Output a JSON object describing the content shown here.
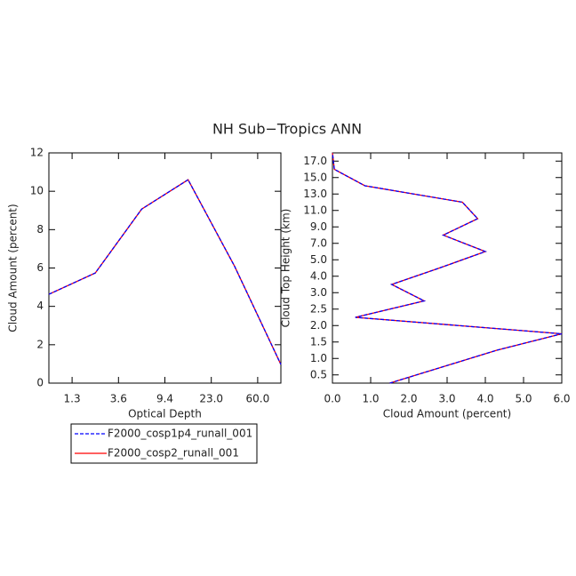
{
  "title": "NH Sub−Tropics ANN",
  "chart_data": [
    {
      "type": "line",
      "x_label": "Optical Depth",
      "y_label": "Cloud Amount (percent)",
      "x": [
        0,
        1,
        2,
        3,
        4,
        5
      ],
      "xlim": [
        0,
        5
      ],
      "xticks": [
        {
          "value": 0.5,
          "label": "1.3"
        },
        {
          "value": 1.5,
          "label": "3.6"
        },
        {
          "value": 2.5,
          "label": "9.4"
        },
        {
          "value": 3.5,
          "label": "23.0"
        },
        {
          "value": 4.5,
          "label": "60.0"
        }
      ],
      "ylim": [
        0,
        12
      ],
      "yticks": [
        0,
        2,
        4,
        6,
        8,
        10,
        12
      ],
      "series": [
        {
          "name": "F2000_cosp2_runall_001",
          "color": "#ff0000",
          "dash": false,
          "values": [
            4.63,
            5.74,
            9.07,
            10.6,
            6.1,
            0.97
          ]
        },
        {
          "name": "F2000_cosp1p4_runall_001",
          "color": "#0000ff",
          "dash": true,
          "values": [
            4.63,
            5.74,
            9.07,
            10.6,
            6.1,
            0.97
          ]
        }
      ]
    },
    {
      "type": "line",
      "orient": "horizontal",
      "x_label": "Cloud Amount (percent)",
      "y_label": "Cloud Top Height (km)",
      "y": [
        0,
        1,
        2,
        3,
        4,
        5,
        6,
        7,
        8,
        9,
        10,
        11,
        12,
        13,
        14
      ],
      "ylim": [
        0,
        14
      ],
      "yticks": [
        {
          "value": 0.5,
          "label": "0.5"
        },
        {
          "value": 1.5,
          "label": "1.0"
        },
        {
          "value": 2.5,
          "label": "1.5"
        },
        {
          "value": 3.5,
          "label": "2.0"
        },
        {
          "value": 4.5,
          "label": "2.5"
        },
        {
          "value": 5.5,
          "label": "3.0"
        },
        {
          "value": 6.5,
          "label": "4.0"
        },
        {
          "value": 7.5,
          "label": "5.0"
        },
        {
          "value": 8.5,
          "label": "7.0"
        },
        {
          "value": 9.5,
          "label": "9.0"
        },
        {
          "value": 10.5,
          "label": "11.0"
        },
        {
          "value": 11.5,
          "label": "13.0"
        },
        {
          "value": 12.5,
          "label": "15.0"
        },
        {
          "value": 13.5,
          "label": "17.0"
        }
      ],
      "xlim": [
        0,
        6
      ],
      "xticks": [
        {
          "value": 0,
          "label": "0.0"
        },
        {
          "value": 1,
          "label": "1.0"
        },
        {
          "value": 2,
          "label": "2.0"
        },
        {
          "value": 3,
          "label": "3.0"
        },
        {
          "value": 4,
          "label": "4.0"
        },
        {
          "value": 5,
          "label": "5.0"
        },
        {
          "value": 6,
          "label": "6.0"
        }
      ],
      "series": [
        {
          "color": "#ff0000",
          "dash": false,
          "values": [
            1.5,
            2.9,
            4.3,
            6.0,
            0.6,
            2.4,
            1.55,
            2.8,
            4.0,
            2.9,
            3.8,
            3.4,
            0.85,
            0.05,
            0.0
          ]
        },
        {
          "color": "#0000ff",
          "dash": true,
          "values": [
            1.5,
            2.9,
            4.3,
            6.0,
            0.6,
            2.4,
            1.55,
            2.8,
            4.0,
            2.9,
            3.8,
            3.4,
            0.85,
            0.05,
            0.0
          ]
        }
      ]
    }
  ]
}
